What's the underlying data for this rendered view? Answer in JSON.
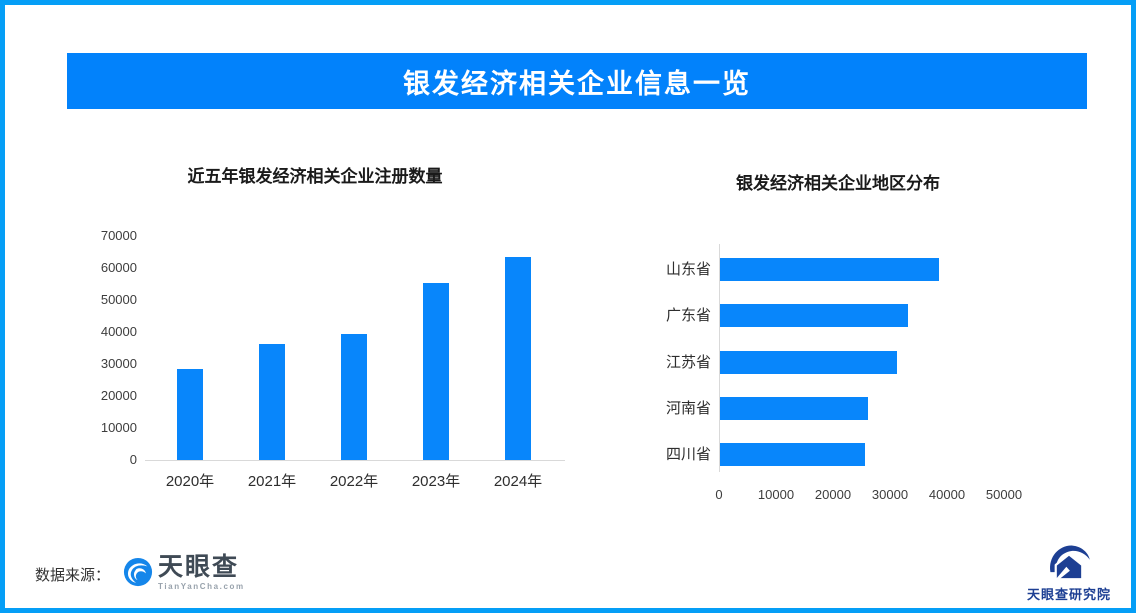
{
  "page": {
    "border_color": "#059ef6",
    "background_color": "#ffffff"
  },
  "banner": {
    "title": "银发经济相关企业信息一览",
    "bg_color": "#0282fb",
    "text_color": "#ffffff"
  },
  "chart_data": [
    {
      "type": "bar",
      "orientation": "vertical",
      "title": "近五年银发经济相关企业注册数量",
      "categories": [
        "2020年",
        "2021年",
        "2022年",
        "2023年",
        "2024年"
      ],
      "values": [
        28500,
        36400,
        39500,
        55400,
        63500
      ],
      "ylim": [
        0,
        70000
      ],
      "yticks": [
        0,
        10000,
        20000,
        30000,
        40000,
        50000,
        60000,
        70000
      ],
      "xlabel": "",
      "ylabel": "",
      "grid": false,
      "bar_color": "#0886fb",
      "axis_color": "#d9d9d9"
    },
    {
      "type": "bar",
      "orientation": "horizontal",
      "title": "银发经济相关企业地区分布",
      "categories": [
        "山东省",
        "广东省",
        "江苏省",
        "河南省",
        "四川省"
      ],
      "values": [
        38500,
        33000,
        31000,
        26000,
        25500
      ],
      "xlim": [
        0,
        50000
      ],
      "xticks": [
        0,
        10000,
        20000,
        30000,
        40000,
        50000
      ],
      "xlabel": "",
      "ylabel": "",
      "grid": false,
      "bar_color": "#0886fb",
      "axis_color": "#d9d9d9"
    }
  ],
  "footer": {
    "source_label": "数据来源：",
    "source_logo": {
      "name": "天眼查",
      "subtext": "TianYanCha.com",
      "icon": "tianyancha-eye-icon",
      "brand_color": "#1586ea"
    },
    "research_logo": {
      "name": "天眼查研究院",
      "icon": "tianyancha-research-icon",
      "brand_color": "#1d3f93"
    }
  }
}
